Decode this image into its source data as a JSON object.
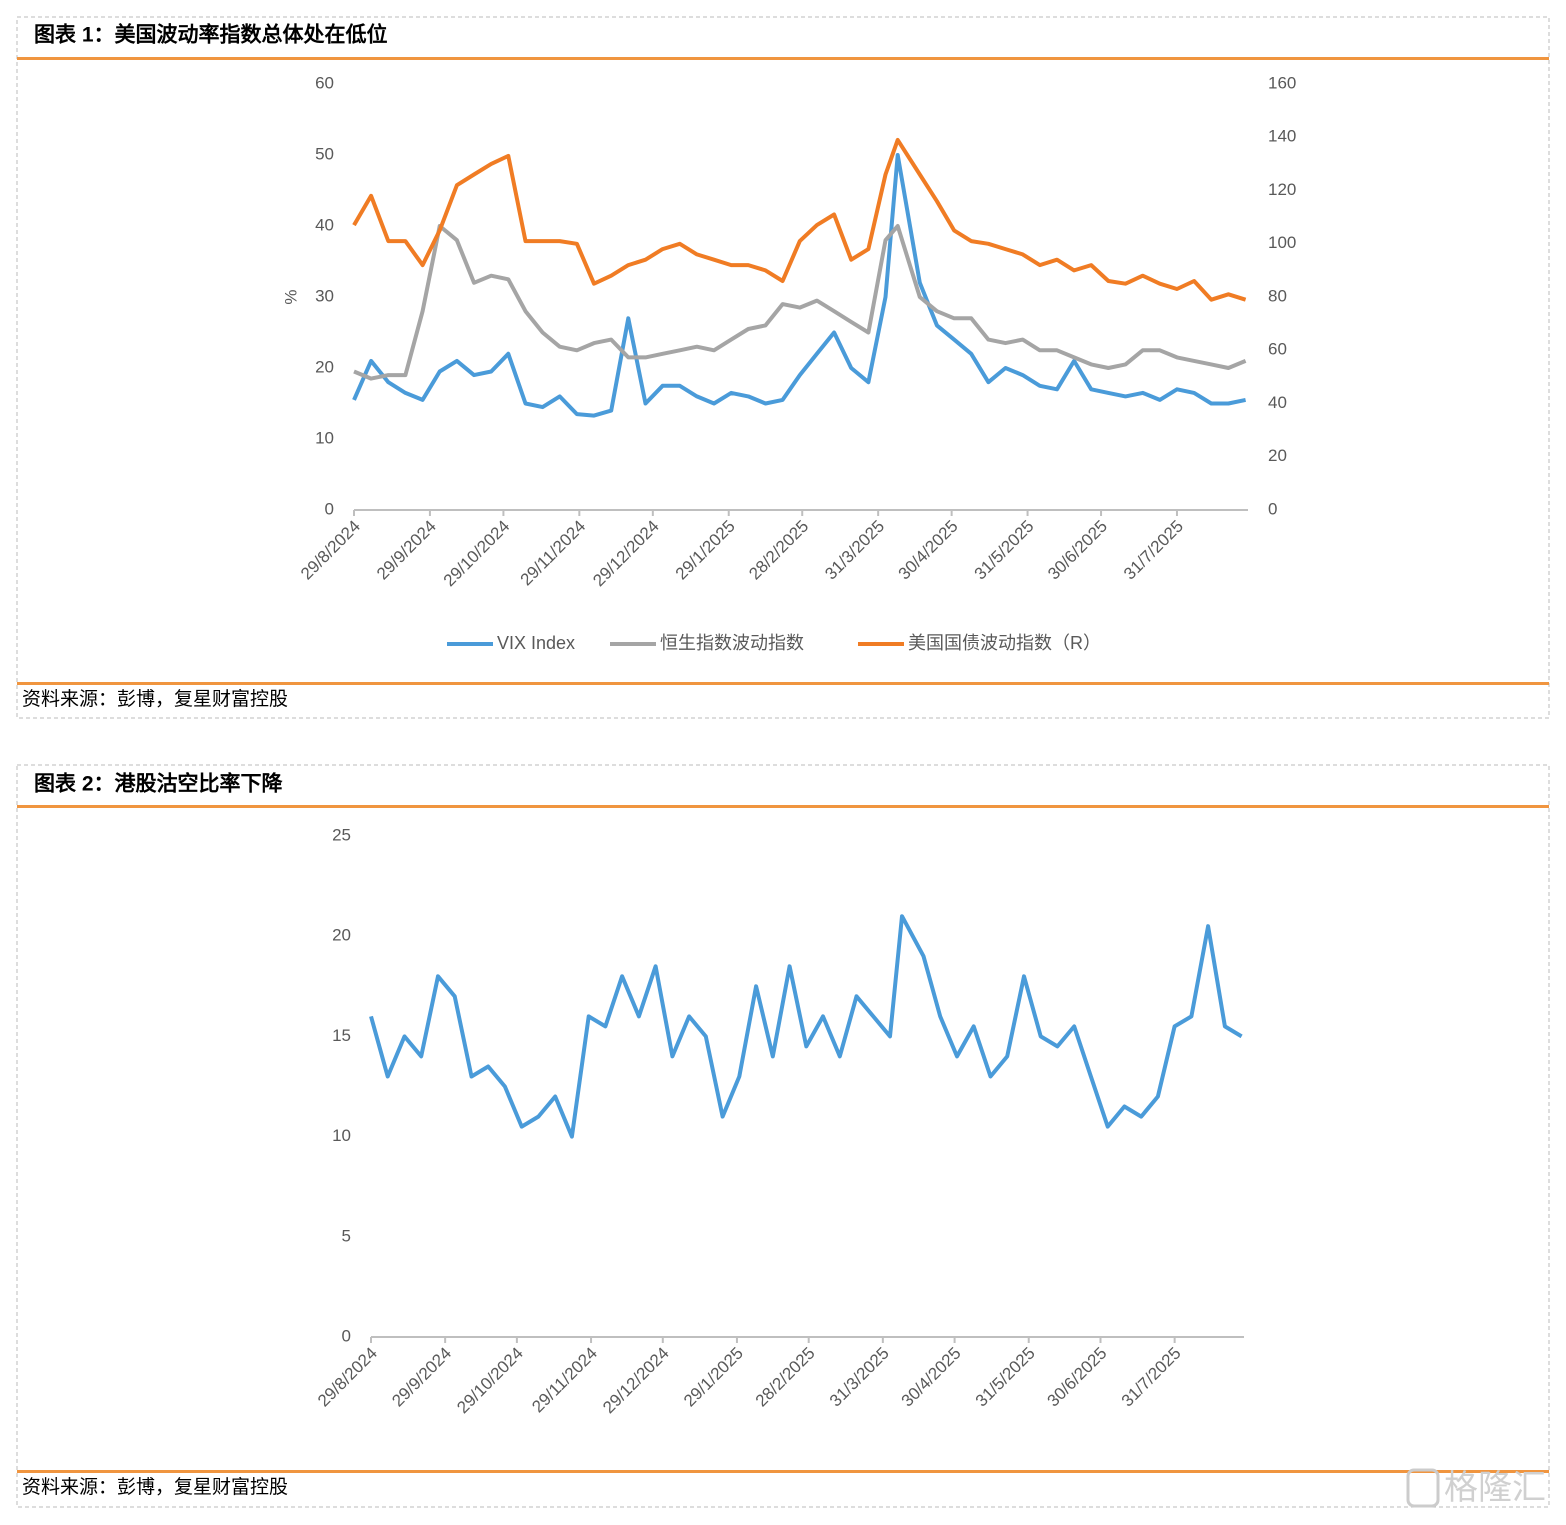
{
  "chart_data": [
    {
      "type": "line",
      "title": "图表 1：美国波动率指数总体处在低位",
      "source": "资料来源：彭博，复星财富控股",
      "ylabel": "%",
      "x": [
        "29/8/2024",
        "5/9/2024",
        "12/9/2024",
        "19/9/2024",
        "26/9/2024",
        "3/10/2024",
        "10/10/2024",
        "17/10/2024",
        "24/10/2024",
        "31/10/2024",
        "7/11/2024",
        "14/11/2024",
        "21/11/2024",
        "28/11/2024",
        "5/12/2024",
        "12/12/2024",
        "19/12/2024",
        "26/12/2024",
        "2/1/2025",
        "9/1/2025",
        "16/1/2025",
        "23/1/2025",
        "30/1/2025",
        "6/2/2025",
        "13/2/2025",
        "20/2/2025",
        "27/2/2025",
        "6/3/2025",
        "13/3/2025",
        "20/3/2025",
        "27/3/2025",
        "3/4/2025",
        "8/4/2025",
        "17/4/2025",
        "24/4/2025",
        "1/5/2025",
        "8/5/2025",
        "15/5/2025",
        "22/5/2025",
        "29/5/2025",
        "5/6/2025",
        "12/6/2025",
        "19/6/2025",
        "26/6/2025",
        "3/7/2025",
        "10/7/2025",
        "17/7/2025",
        "24/7/2025",
        "31/7/2025",
        "7/8/2025",
        "14/8/2025",
        "21/8/2025",
        "28/8/2025"
      ],
      "series": [
        {
          "name": "VIX Index",
          "color": "#4a9bd9",
          "values": [
            15.5,
            21,
            18,
            16.5,
            15.5,
            19.5,
            21,
            19,
            19.5,
            22,
            15,
            14.5,
            16,
            13.5,
            13.3,
            14,
            27,
            15,
            17.5,
            17.5,
            16,
            15,
            16.5,
            16,
            15,
            15.5,
            19,
            22,
            25,
            20,
            18,
            30,
            50,
            32,
            26,
            24,
            22,
            18,
            20,
            19,
            17.5,
            17,
            21,
            17,
            16.5,
            16,
            16.5,
            15.5,
            17,
            16.5,
            15,
            15,
            15.5
          ]
        },
        {
          "name": "恒生指数波动指数",
          "color": "#a5a5a5",
          "values": [
            19.5,
            18.5,
            19,
            19,
            28,
            40,
            38,
            32,
            33,
            32.5,
            28,
            25,
            23,
            22.5,
            23.5,
            24,
            21.5,
            21.5,
            22,
            22.5,
            23,
            22.5,
            24,
            25.5,
            26,
            29,
            28.5,
            29.5,
            28,
            26.5,
            25,
            38,
            40,
            30,
            28,
            27,
            27,
            24,
            23.5,
            24,
            22.5,
            22.5,
            21.5,
            20.5,
            20,
            20.5,
            22.5,
            22.5,
            21.5,
            21,
            20.5,
            20,
            21
          ]
        },
        {
          "name": "美国国债波动指数（R）",
          "color": "#f07c24",
          "axis": "y2",
          "values": [
            107,
            118,
            101,
            101,
            92,
            105,
            122,
            126,
            130,
            133,
            101,
            101,
            101,
            100,
            85,
            88,
            92,
            94,
            98,
            100,
            96,
            94,
            92,
            92,
            90,
            86,
            101,
            107,
            111,
            94,
            98,
            126,
            139,
            126,
            116,
            105,
            101,
            100,
            98,
            96,
            92,
            94,
            90,
            92,
            86,
            85,
            88,
            85,
            83,
            86,
            79,
            81,
            79
          ]
        }
      ],
      "xlim": [
        "29/8/2024",
        "29/8/2025"
      ],
      "xticks": [
        "29/8/2024",
        "29/9/2024",
        "29/10/2024",
        "29/11/2024",
        "29/12/2024",
        "29/1/2025",
        "28/2/2025",
        "31/3/2025",
        "30/4/2025",
        "31/5/2025",
        "30/6/2025",
        "31/7/2025"
      ],
      "ylim": [
        0,
        60
      ],
      "yticks": [
        0,
        10,
        20,
        30,
        40,
        50,
        60
      ],
      "y2lim": [
        0,
        160
      ],
      "y2ticks": [
        0,
        20,
        40,
        60,
        80,
        100,
        120,
        140,
        160
      ],
      "grid": false,
      "legend": "bottom"
    },
    {
      "type": "line",
      "title": "图表 2：港股沽空比率下降",
      "source": "资料来源：彭博，复星财富控股",
      "x": [
        "29/8/2024",
        "5/9/2024",
        "12/9/2024",
        "19/9/2024",
        "26/9/2024",
        "3/10/2024",
        "10/10/2024",
        "17/10/2024",
        "24/10/2024",
        "31/10/2024",
        "7/11/2024",
        "14/11/2024",
        "21/11/2024",
        "28/11/2024",
        "5/12/2024",
        "12/12/2024",
        "19/12/2024",
        "26/12/2024",
        "2/1/2025",
        "9/1/2025",
        "16/1/2025",
        "23/1/2025",
        "30/1/2025",
        "6/2/2025",
        "13/2/2025",
        "20/2/2025",
        "27/2/2025",
        "6/3/2025",
        "13/3/2025",
        "20/3/2025",
        "27/3/2025",
        "3/4/2025",
        "8/4/2025",
        "17/4/2025",
        "24/4/2025",
        "1/5/2025",
        "8/5/2025",
        "15/5/2025",
        "22/5/2025",
        "29/5/2025",
        "5/6/2025",
        "12/6/2025",
        "19/6/2025",
        "26/6/2025",
        "3/7/2025",
        "10/7/2025",
        "17/7/2025",
        "24/7/2025",
        "31/7/2025",
        "7/8/2025",
        "14/8/2025",
        "21/8/2025",
        "28/8/2025"
      ],
      "color": "#4a9bd9",
      "values": [
        16,
        13,
        15,
        14,
        18,
        17,
        13,
        13.5,
        12.5,
        10.5,
        11,
        12,
        10,
        16,
        15.5,
        18,
        16,
        18.5,
        14,
        16,
        15,
        11,
        13,
        17.5,
        14,
        18.5,
        14.5,
        16,
        14,
        17,
        16,
        15,
        21,
        19,
        16,
        14,
        15.5,
        13,
        14,
        18,
        15,
        14.5,
        15.5,
        13,
        10.5,
        11.5,
        11,
        12,
        15.5,
        16,
        20.5,
        15.5,
        15
      ],
      "xlim": [
        "29/8/2024",
        "29/8/2025"
      ],
      "xticks": [
        "29/8/2024",
        "29/9/2024",
        "29/10/2024",
        "29/11/2024",
        "29/12/2024",
        "29/1/2025",
        "28/2/2025",
        "31/3/2025",
        "30/4/2025",
        "31/5/2025",
        "30/6/2025",
        "31/7/2025"
      ],
      "ylim": [
        0,
        25
      ],
      "yticks": [
        0,
        5,
        10,
        15,
        20,
        25
      ],
      "grid": false
    }
  ],
  "watermark": "格隆汇"
}
